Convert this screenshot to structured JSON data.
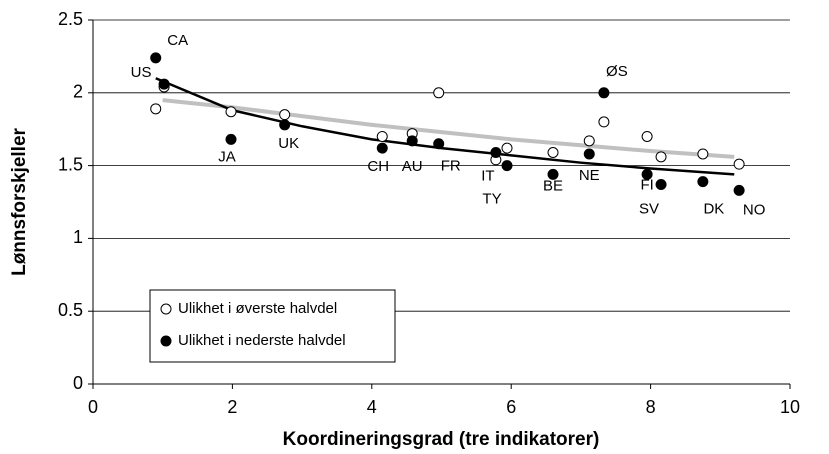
{
  "chart_data": {
    "type": "scatter",
    "xlabel": "Koordineringsgrad (tre indikatorer)",
    "ylabel": "Lønnsforskjeller",
    "xlim": [
      0,
      10
    ],
    "xticks": [
      0,
      2,
      4,
      6,
      8,
      10
    ],
    "ylim": [
      0,
      2.5
    ],
    "yticks": [
      0,
      0.5,
      1,
      1.5,
      2,
      2.5
    ],
    "grid": true,
    "legend": "lower left",
    "series": [
      {
        "name": "Ulikhet i øverste halvdel",
        "color": "#ffffff",
        "marker": "open",
        "x": [
          0.9,
          1.02,
          1.98,
          2.75,
          4.15,
          4.58,
          4.96,
          5.78,
          5.94,
          6.6,
          7.12,
          7.33,
          7.95,
          8.15,
          8.75,
          9.27
        ],
        "values": [
          1.89,
          2.04,
          1.87,
          1.85,
          1.7,
          1.72,
          2.0,
          1.54,
          1.62,
          1.59,
          1.67,
          1.8,
          1.7,
          1.56,
          1.58,
          1.51
        ]
      },
      {
        "name": "Ulikhet i nederste halvdel",
        "color": "#000000",
        "marker": "filled",
        "x": [
          0.9,
          1.02,
          1.98,
          2.75,
          4.15,
          4.58,
          4.96,
          5.78,
          5.94,
          6.6,
          7.12,
          7.33,
          7.95,
          8.15,
          8.75,
          9.27
        ],
        "values": [
          2.24,
          2.06,
          1.68,
          1.78,
          1.62,
          1.67,
          1.65,
          1.59,
          1.5,
          1.44,
          1.58,
          2.0,
          1.44,
          1.37,
          1.39,
          1.33
        ],
        "point_labels": [
          "CA",
          "US",
          "JA",
          "UK",
          "CH",
          "AU",
          "FR",
          "IT",
          "TY",
          "BE",
          "NE",
          "ØS",
          "FI",
          "SV",
          "DK",
          "NO"
        ]
      }
    ],
    "trendlines": [
      {
        "color": "#c0c0c0",
        "x": [
          1,
          2,
          3,
          4,
          5,
          6,
          7,
          8,
          9.2
        ],
        "values": [
          1.95,
          1.9,
          1.84,
          1.78,
          1.73,
          1.68,
          1.64,
          1.6,
          1.56
        ]
      },
      {
        "color": "#000000",
        "x": [
          0.9,
          2,
          3,
          4,
          5,
          6,
          7,
          8,
          9.2
        ],
        "values": [
          2.1,
          1.88,
          1.77,
          1.68,
          1.62,
          1.57,
          1.52,
          1.48,
          1.44
        ]
      }
    ]
  }
}
